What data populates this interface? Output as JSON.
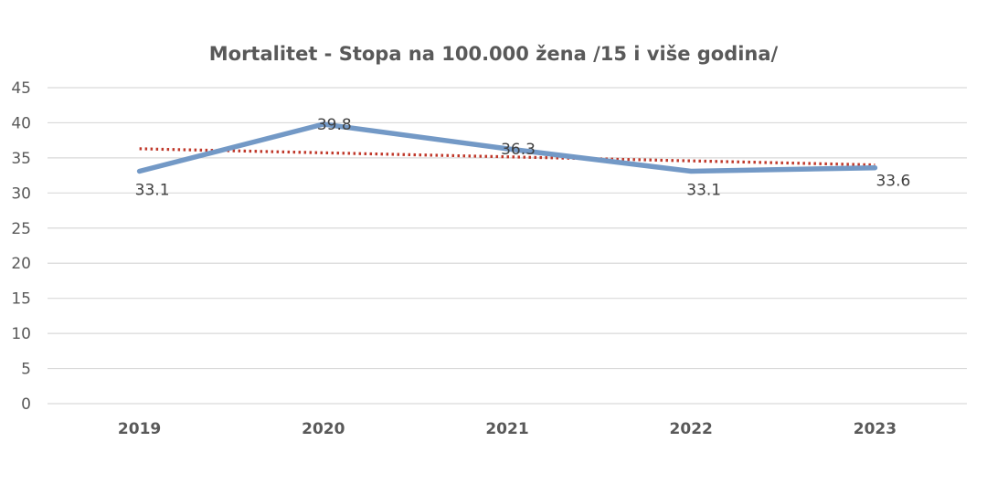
{
  "chart_data": {
    "type": "line",
    "title": "Mortalitet - Stopa na 100.000 žena /15 i više godina/",
    "categories": [
      "2019",
      "2020",
      "2021",
      "2022",
      "2023"
    ],
    "series": [
      {
        "values": [
          33.1,
          39.8,
          36.3,
          33.1,
          33.6
        ],
        "color": "#7399c6"
      }
    ],
    "trendline": {
      "type": "linear",
      "style": "dotted",
      "color": "#c0392b",
      "start": 36.3,
      "end": 34.0
    },
    "ylim": [
      0,
      45
    ],
    "yticks": [
      "0",
      "5",
      "10",
      "15",
      "20",
      "25",
      "30",
      "35",
      "40",
      "45"
    ],
    "grid": true,
    "legend": "none"
  }
}
